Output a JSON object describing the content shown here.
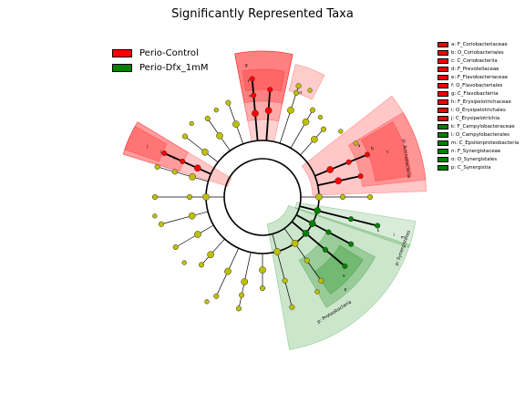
{
  "title": "Significantly Represented Taxa",
  "colors": {
    "control": "#ff0000",
    "dfx": "#008000",
    "neutral_node": "#bfbf00",
    "branch": "#000000"
  },
  "legend": [
    {
      "label": "Perio-Control",
      "color": "#ff0000"
    },
    {
      "label": "Perio-Dfx_1mM",
      "color": "#008000"
    }
  ],
  "taxa_key": [
    {
      "label": "a: F_Coriobacteriaceae",
      "group": "control"
    },
    {
      "label": "b: O_Coriobacteriales",
      "group": "control"
    },
    {
      "label": "c: C_Coriobacteriia",
      "group": "control"
    },
    {
      "label": "d: F_Prevotellaceae",
      "group": "control"
    },
    {
      "label": "e: F_Flavobacteriaceae",
      "group": "control"
    },
    {
      "label": "f: O_Flavobacteriales",
      "group": "control"
    },
    {
      "label": "g: C_Flavobacteriia",
      "group": "control"
    },
    {
      "label": "h: F_Erysipelotrichaceae",
      "group": "control"
    },
    {
      "label": "i: O_Erysipelotrichales",
      "group": "control"
    },
    {
      "label": "j: C_Erysipelotrichia",
      "group": "control"
    },
    {
      "label": "k: F_Campylobacteraceae",
      "group": "dfx"
    },
    {
      "label": "l: O_Campylobacterales",
      "group": "dfx"
    },
    {
      "label": "m: C_Epsilonproteobacteria",
      "group": "dfx"
    },
    {
      "label": "n: F_Synergistaceae",
      "group": "dfx"
    },
    {
      "label": "o: O_Synergistales",
      "group": "dfx"
    },
    {
      "label": "p: C_Synergistia",
      "group": "dfx"
    }
  ],
  "clade_labels": [
    {
      "text": "p: Actinobacteria",
      "group": "control"
    },
    {
      "text": "p: Synergistetes",
      "group": "dfx"
    },
    {
      "text": "p: Proteobacteria",
      "group": "dfx"
    }
  ],
  "sector_letters": [
    "a",
    "b",
    "c",
    "d",
    "e",
    "f",
    "g",
    "h",
    "i",
    "j",
    "k",
    "l",
    "m",
    "n",
    "o",
    "p"
  ]
}
